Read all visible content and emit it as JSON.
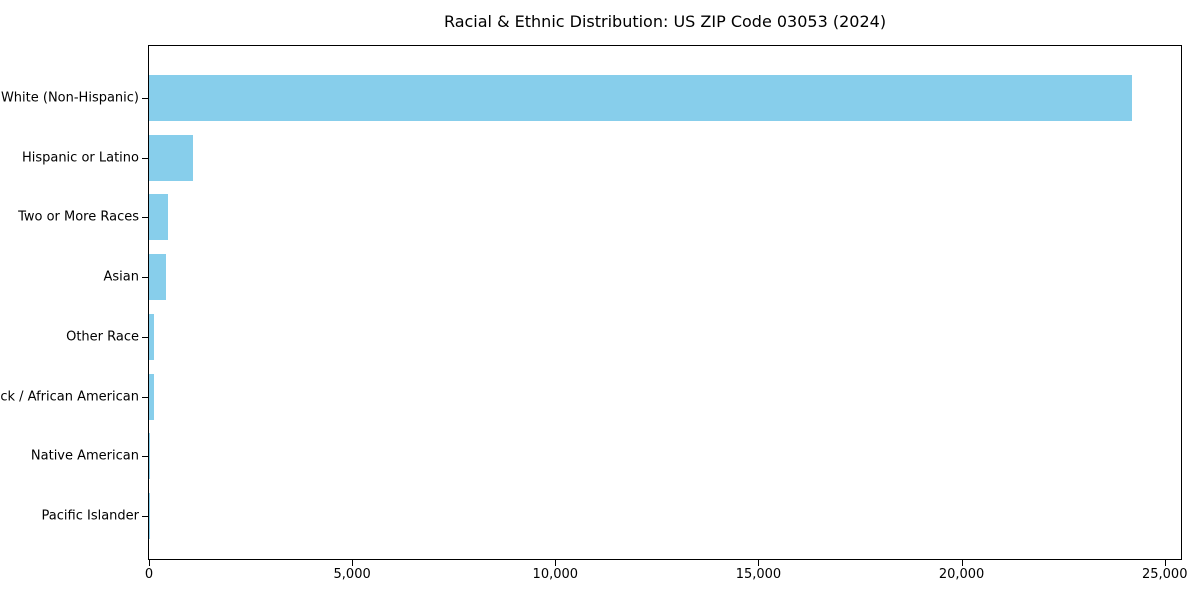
{
  "chart_data": {
    "type": "bar",
    "orientation": "horizontal",
    "title": "Racial & Ethnic Distribution: US ZIP Code 03053 (2024)",
    "categories": [
      "White (Non-Hispanic)",
      "Hispanic or Latino",
      "Two or More Races",
      "Asian",
      "Other Race",
      "Black / African American",
      "Native American",
      "Pacific Islander"
    ],
    "values": [
      24190,
      1090,
      460,
      410,
      130,
      115,
      15,
      5
    ],
    "bar_color": "#87CEEB",
    "xlabel": "",
    "ylabel": "",
    "xlim": [
      0,
      25400
    ],
    "xtick_values": [
      0,
      5000,
      10000,
      15000,
      20000,
      25000
    ],
    "xtick_labels": [
      "0",
      "5,000",
      "10,000",
      "15,000",
      "20,000",
      "25,000"
    ],
    "grid": false,
    "legend": "none",
    "frame": true,
    "background_color": "#ffffff",
    "text_color": "#000000"
  }
}
